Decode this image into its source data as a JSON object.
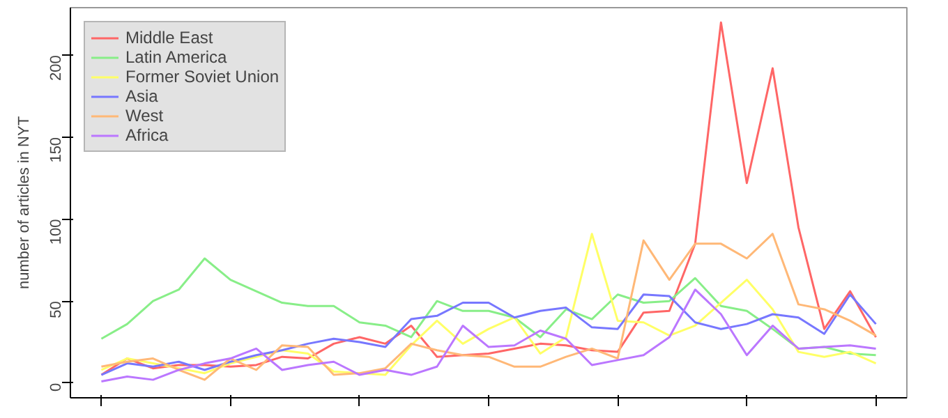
{
  "chart_data": {
    "type": "line",
    "ylabel": "number of articles in NYT",
    "categories": [
      null,
      null,
      null,
      null,
      null,
      null,
      null,
      null,
      null,
      null,
      null,
      null,
      null,
      null,
      null,
      null,
      null,
      null,
      null,
      null,
      null,
      null,
      null,
      null,
      null,
      null,
      null,
      null,
      null,
      null,
      null
    ],
    "series": [
      {
        "name": "Middle East",
        "color": "#ff6666",
        "values": [
          5,
          15,
          9,
          11,
          11,
          10,
          11,
          16,
          15,
          24,
          28,
          24,
          35,
          16,
          17,
          18,
          21,
          24,
          23,
          20,
          19,
          43,
          44,
          85,
          220,
          122,
          192,
          95,
          33,
          56,
          28
        ]
      },
      {
        "name": "Latin America",
        "color": "#88ee88",
        "values": [
          27,
          36,
          50,
          57,
          76,
          63,
          56,
          49,
          47,
          47,
          37,
          35,
          28,
          50,
          44,
          44,
          40,
          28,
          45,
          39,
          54,
          49,
          50,
          64,
          47,
          44,
          33,
          21,
          22,
          18,
          17
        ]
      },
      {
        "name": "Former Soviet Union",
        "color": "#ffff66",
        "values": [
          8,
          15,
          12,
          9,
          6,
          12,
          16,
          20,
          18,
          7,
          6,
          5,
          23,
          38,
          24,
          33,
          40,
          18,
          28,
          91,
          38,
          37,
          29,
          35,
          49,
          63,
          45,
          19,
          16,
          19,
          12
        ]
      },
      {
        "name": "Asia",
        "color": "#7777ff",
        "values": [
          5,
          12,
          10,
          13,
          8,
          13,
          17,
          20,
          24,
          27,
          25,
          22,
          39,
          41,
          49,
          49,
          40,
          44,
          46,
          34,
          33,
          54,
          53,
          37,
          33,
          36,
          42,
          40,
          30,
          54,
          36
        ]
      },
      {
        "name": "West",
        "color": "#ffb877",
        "values": [
          10,
          13,
          15,
          8,
          2,
          15,
          8,
          23,
          22,
          5,
          6,
          9,
          24,
          20,
          17,
          16,
          10,
          10,
          16,
          21,
          15,
          87,
          63,
          85,
          85,
          76,
          91,
          48,
          45,
          38,
          29
        ]
      },
      {
        "name": "Africa",
        "color": "#bb77ff",
        "values": [
          1,
          4,
          2,
          8,
          12,
          15,
          21,
          8,
          11,
          13,
          5,
          8,
          5,
          10,
          35,
          22,
          23,
          32,
          27,
          11,
          14,
          17,
          28,
          57,
          42,
          17,
          35,
          21,
          22,
          23,
          21
        ]
      }
    ],
    "ylim": [
      -9,
      229
    ],
    "yticks": [
      0,
      50,
      100,
      150,
      200
    ],
    "legend": "top left",
    "grid": false
  }
}
